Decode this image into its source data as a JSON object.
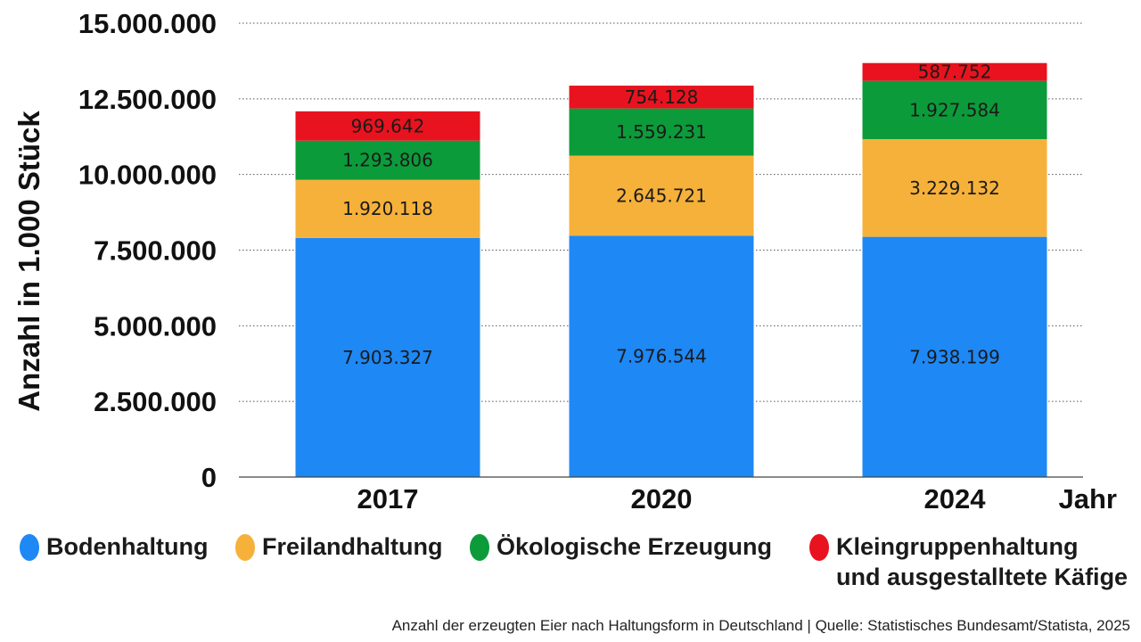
{
  "chart_data": {
    "type": "stacked-bar",
    "title": "",
    "ylabel": "Anzahl in 1.000 Stück",
    "xlabel": "Jahr",
    "ylim": [
      0,
      15000000
    ],
    "yticks": [
      0,
      2500000,
      5000000,
      7500000,
      10000000,
      12500000,
      15000000
    ],
    "ytick_labels": [
      "0",
      "2.500.000",
      "5.000.000",
      "7.500.000",
      "10.000.000",
      "12.500.000",
      "15.000.000"
    ],
    "categories": [
      "2017",
      "2020",
      "2024"
    ],
    "series": [
      {
        "name": "Bodenhaltung",
        "color": "#1e88f5",
        "values": [
          7903327,
          7976544,
          7938199
        ],
        "labels": [
          "7.903.327",
          "7.976.544",
          "7.938.199"
        ]
      },
      {
        "name": "Freilandhaltung",
        "color": "#f6b13a",
        "values": [
          1920118,
          2645721,
          3229132
        ],
        "labels": [
          "1.920.118",
          "2.645.721",
          "3.229.132"
        ]
      },
      {
        "name": "Ökologische Erzeugung",
        "color": "#0c9b3a",
        "values": [
          1293806,
          1559231,
          1927584
        ],
        "labels": [
          "1.293.806",
          "1.559.231",
          "1.927.584"
        ]
      },
      {
        "name": "Kleingruppenhaltung und ausgestalltete Käfige",
        "color": "#e8131e",
        "values": [
          969642,
          754128,
          587752
        ],
        "labels": [
          "969.642",
          "754.128",
          "587.752"
        ]
      }
    ],
    "grid": true
  },
  "legend": {
    "items": [
      {
        "line1": "Bodenhaltung",
        "line2": "",
        "color": "#1e88f5"
      },
      {
        "line1": "Freilandhaltung",
        "line2": "",
        "color": "#f6b13a"
      },
      {
        "line1": "Ökologische Erzeugung",
        "line2": "",
        "color": "#0c9b3a"
      },
      {
        "line1": "Kleingruppenhaltung",
        "line2": "und ausgestalltete Käfige",
        "color": "#e8131e"
      }
    ]
  },
  "source": "Anzahl der erzeugten Eier nach Haltungsform in Deutschland | Quelle: Statistisches Bundesamt/Statista, 2025"
}
